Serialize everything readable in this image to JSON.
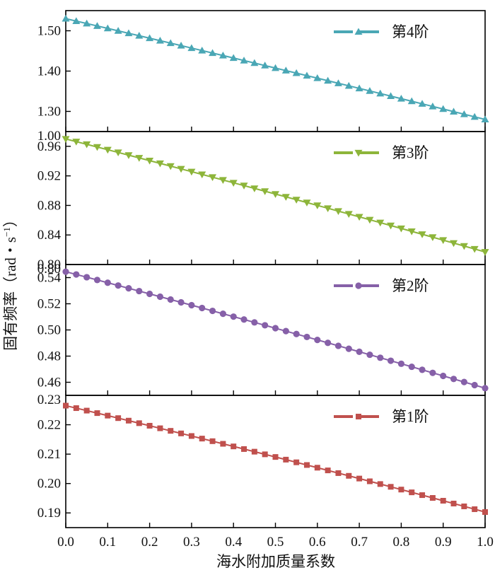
{
  "chart_data": {
    "type": "line",
    "xlabel": "海水附加质量系数",
    "ylabel": "固有频率（rad・s",
    "ylabel_sup": "−1",
    "ylabel_close": "）",
    "xlim": [
      0,
      1
    ],
    "xticks": [
      0.0,
      0.1,
      0.2,
      0.3,
      0.4,
      0.5,
      0.6,
      0.7,
      0.8,
      0.9,
      1.0
    ],
    "xtick_labels": [
      "0.0",
      "0.1",
      "0.2",
      "0.3",
      "0.4",
      "0.5",
      "0.6",
      "0.7",
      "0.8",
      "0.9",
      "1.0"
    ],
    "n_points": 41,
    "panels": [
      {
        "name": "第4阶",
        "color": "#4aa7b5",
        "marker": "triangle-up",
        "ylim": [
          1.25,
          1.55
        ],
        "yticks": [
          1.3,
          1.4,
          1.5
        ],
        "ytick_labels": [
          "1.30",
          "1.40",
          "1.50"
        ],
        "start": 1.53,
        "end": 1.28,
        "curvature": 0.04
      },
      {
        "name": "第3阶",
        "color": "#8db53a",
        "marker": "triangle-down",
        "ylim": [
          0.8,
          0.98
        ],
        "yticks": [
          0.8,
          0.84,
          0.88,
          0.92,
          0.96
        ],
        "ytick_labels": [
          "0.80",
          "0.84",
          "0.88",
          "0.92",
          "0.96"
        ],
        "top_label": "1.00",
        "start": 0.97,
        "end": 0.817,
        "curvature": 0.05
      },
      {
        "name": "第2阶",
        "color": "#8660a8",
        "marker": "circle",
        "ylim": [
          0.45,
          0.55
        ],
        "yticks": [
          0.46,
          0.48,
          0.5,
          0.52,
          0.54
        ],
        "ytick_labels": [
          "0.46",
          "0.48",
          "0.50",
          "0.52",
          "0.54"
        ],
        "top_label": "0.80",
        "start": 0.5445,
        "end": 0.4555,
        "curvature": 0.06
      },
      {
        "name": "第1阶",
        "color": "#c0504d",
        "marker": "square",
        "ylim": [
          0.185,
          0.23
        ],
        "yticks": [
          0.19,
          0.2,
          0.21,
          0.22
        ],
        "ytick_labels": [
          "0.19",
          "0.20",
          "0.21",
          "0.22"
        ],
        "top_label": "0.23",
        "start": 0.2265,
        "end": 0.1903,
        "curvature": 0.07
      }
    ]
  }
}
